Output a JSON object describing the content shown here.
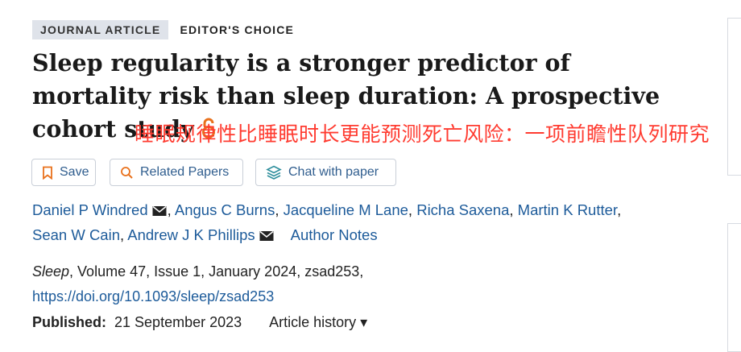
{
  "tags": {
    "type": "JOURNAL ARTICLE",
    "choice": "EDITOR'S CHOICE"
  },
  "title": "Sleep regularity is a stronger predictor of mortality risk than sleep duration: A prospective cohort study",
  "translation_overlay": "睡眠规律性比睡眠时长更能预测死亡风险：一项前瞻性队列研究",
  "actions": {
    "save": "Save",
    "related": "Related Papers",
    "chat": "Chat with paper"
  },
  "authors": [
    "Daniel P Windred",
    "Angus C Burns",
    "Jacqueline M Lane",
    "Richa Saxena",
    "Martin K Rutter",
    "Sean W Cain",
    "Andrew J K Phillips"
  ],
  "author_notes": "Author Notes",
  "citation": {
    "journal": "Sleep",
    "details": ", Volume 47, Issue 1, January 2024, zsad253,",
    "doi": "https://doi.org/10.1093/sleep/zsad253"
  },
  "published": {
    "label": "Published:",
    "date": "21 September 2023",
    "history": "Article history ▾"
  },
  "colors": {
    "link": "#1d5b9a",
    "overlay": "#ff3b30",
    "open_access": "#e9711c",
    "tag_bg": "#dfe3ea"
  },
  "icons": [
    "open-access-icon",
    "bookmark-icon",
    "search-icon",
    "chat-icon",
    "envelope-icon"
  ]
}
